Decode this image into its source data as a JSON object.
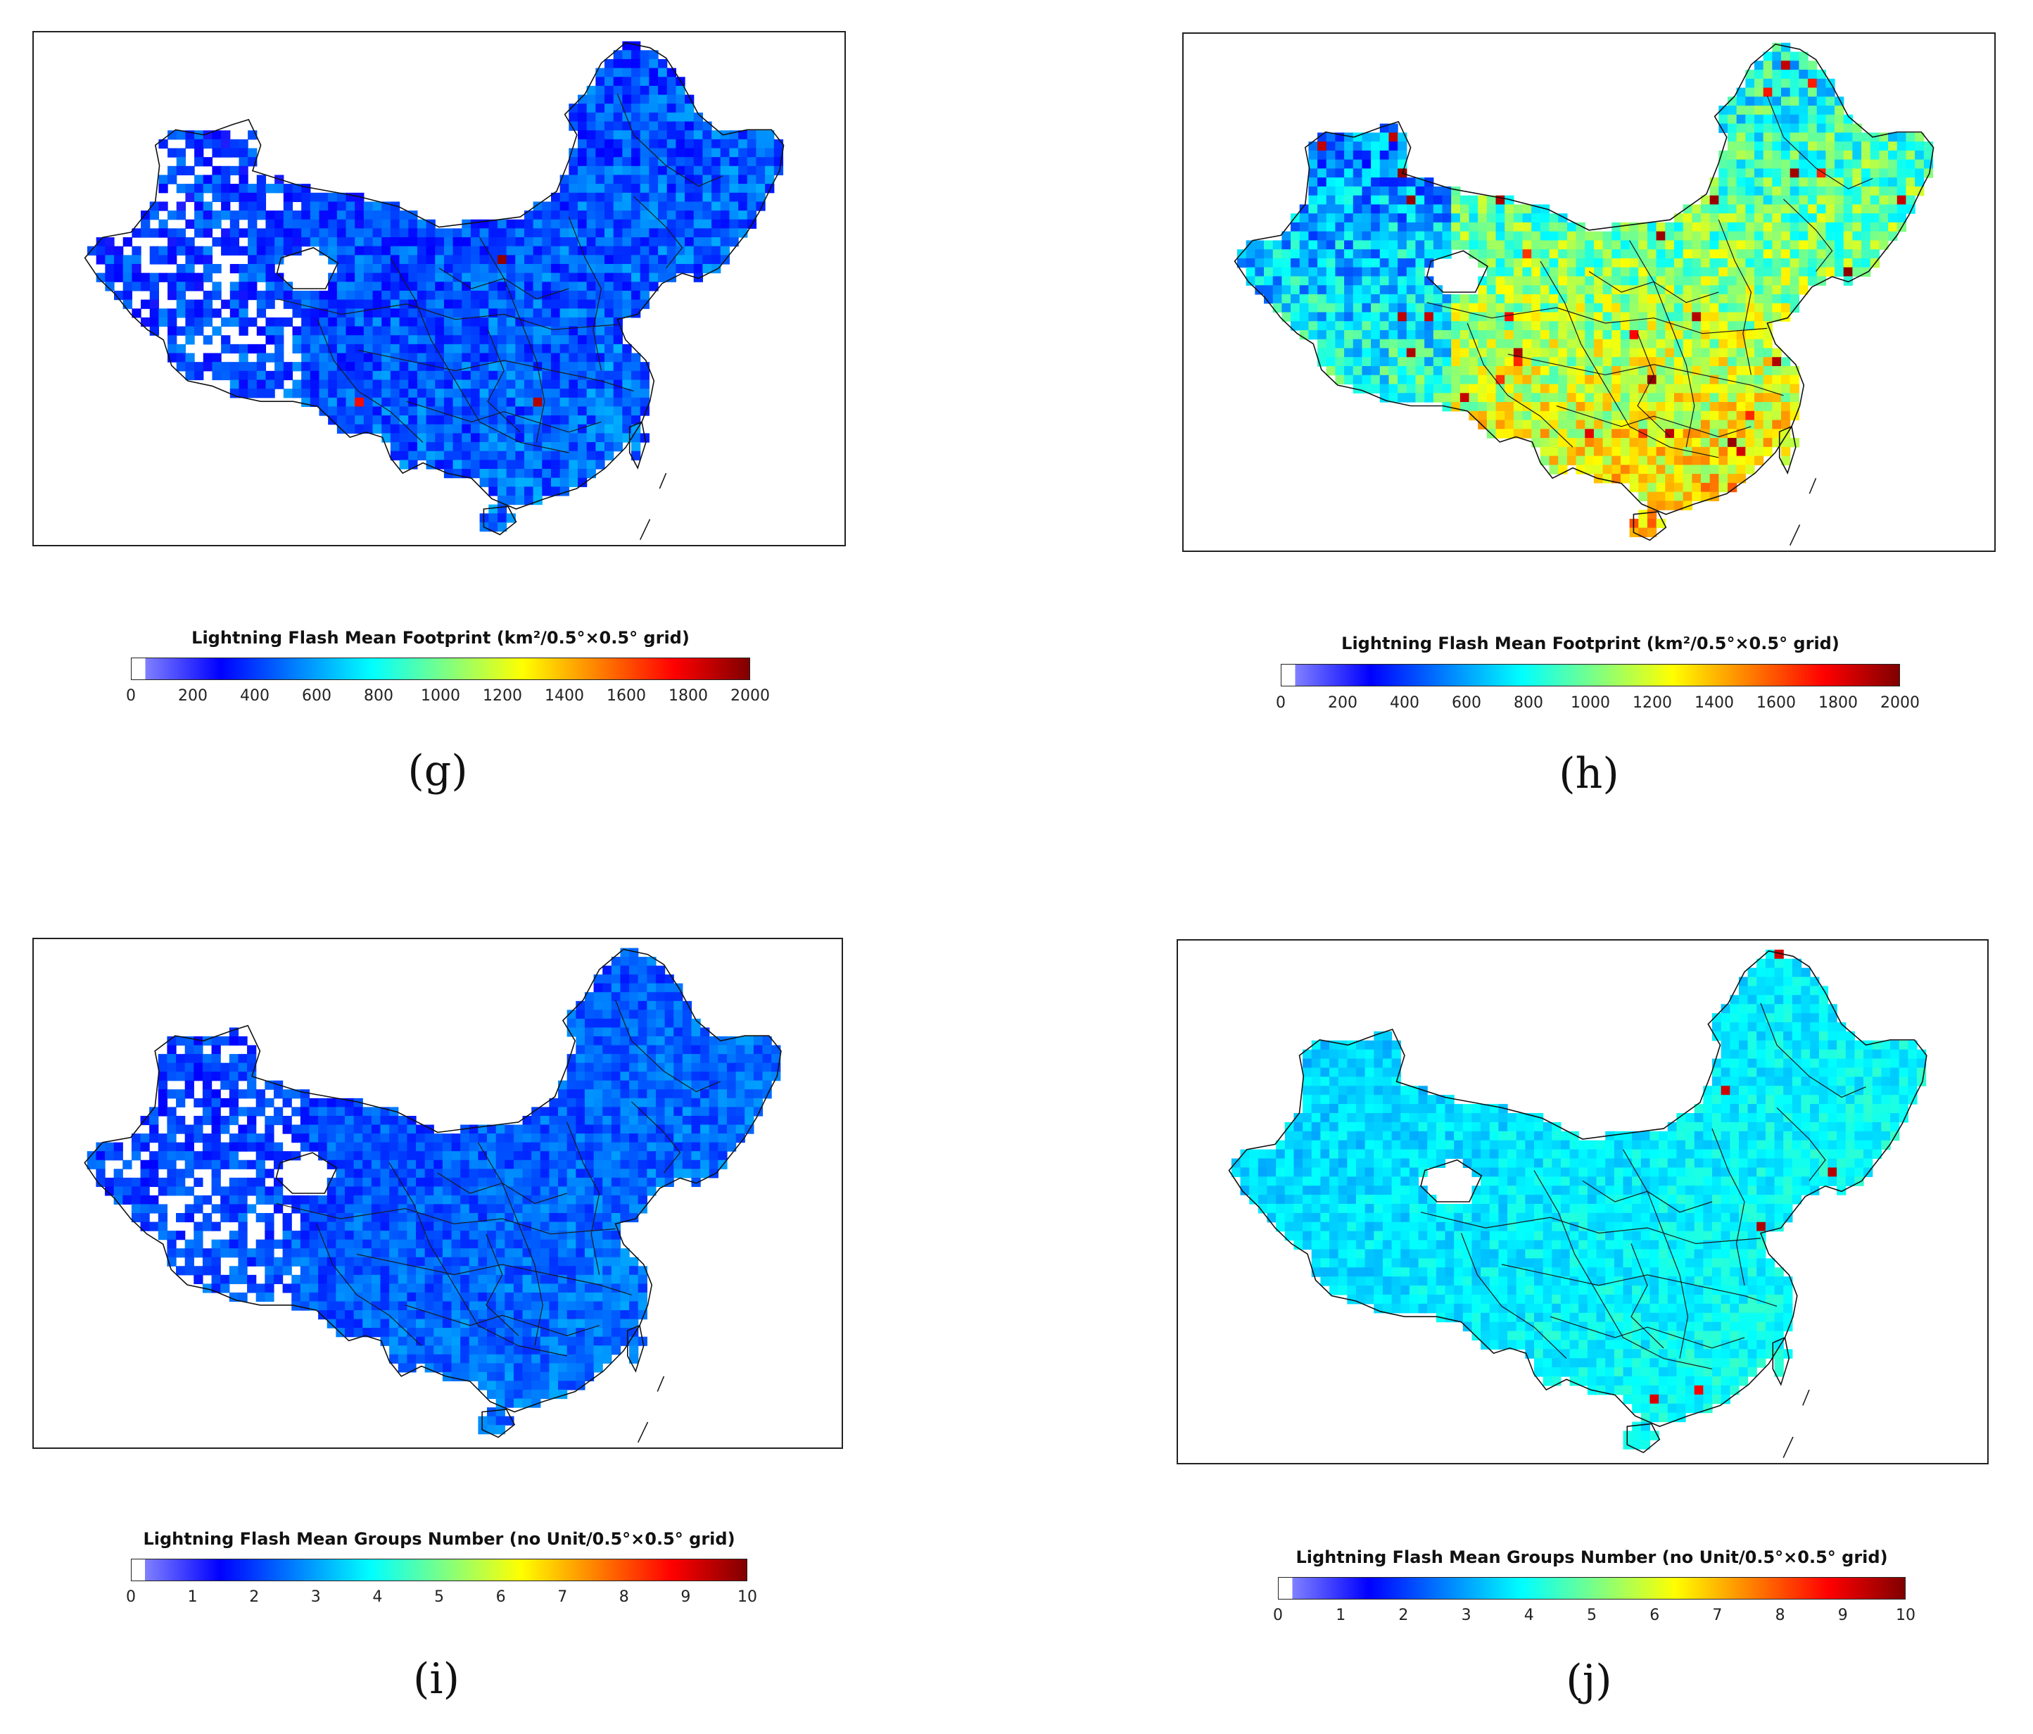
{
  "panels": [
    {
      "id": "g",
      "label": "(g)",
      "colorbar_title": "Lightning Flash Mean Footprint (km²/0.5°×0.5° grid)",
      "ticks": [
        "0",
        "200",
        "400",
        "600",
        "800",
        "1000",
        "1200",
        "1400",
        "1600",
        "1800",
        "2000"
      ],
      "dominant_level": 0.2,
      "spread": 0.08,
      "hot_spots": 2
    },
    {
      "id": "h",
      "label": "(h)",
      "colorbar_title": "Lightning Flash Mean Footprint (km²/0.5°×0.5° grid)",
      "ticks": [
        "0",
        "200",
        "400",
        "600",
        "800",
        "1000",
        "1200",
        "1400",
        "1600",
        "1800",
        "2000"
      ],
      "dominant_level": 0.5,
      "spread": 0.13,
      "hot_spots": 40
    },
    {
      "id": "i",
      "label": "(i)",
      "colorbar_title": "Lightning Flash Mean Groups Number (no Unit/0.5°×0.5° grid)",
      "ticks": [
        "0",
        "1",
        "2",
        "3",
        "4",
        "5",
        "6",
        "7",
        "8",
        "9",
        "10"
      ],
      "dominant_level": 0.21,
      "spread": 0.06,
      "hot_spots": 2
    },
    {
      "id": "j",
      "label": "(j)",
      "colorbar_title": "Lightning Flash Mean Groups Number (no Unit/0.5°×0.5° grid)",
      "ticks": [
        "0",
        "1",
        "2",
        "3",
        "4",
        "5",
        "6",
        "7",
        "8",
        "9",
        "10"
      ],
      "dominant_level": 0.36,
      "spread": 0.05,
      "hot_spots": 6
    }
  ],
  "colormap": [
    "#ffffff",
    "#8080ff",
    "#0000ff",
    "#0080ff",
    "#00ffff",
    "#80ff80",
    "#ffff00",
    "#ff8000",
    "#ff0000",
    "#800000"
  ]
}
